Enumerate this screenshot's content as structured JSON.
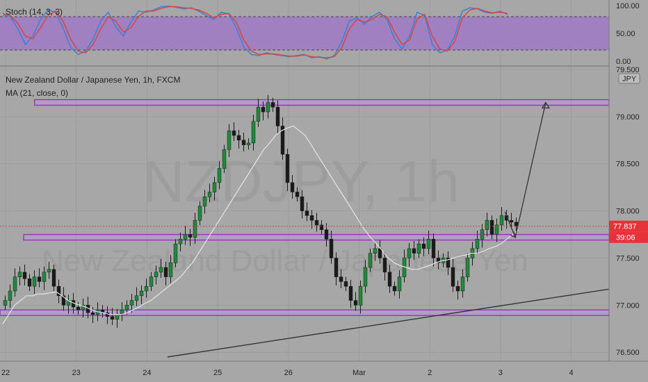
{
  "chart_data": [
    {
      "type": "line",
      "indicator": "Stoch (14, 3, 3)",
      "ylim": [
        0,
        100
      ],
      "yticks": [
        "100.00",
        "50.00",
        "0.00"
      ],
      "band": [
        20,
        80
      ],
      "series": [
        {
          "color": "#3a7fd8",
          "values": [
            86,
            80,
            58,
            30,
            45,
            75,
            92,
            88,
            60,
            25,
            12,
            18,
            40,
            72,
            88,
            62,
            45,
            70,
            90,
            88,
            92,
            98,
            99,
            97,
            94,
            96,
            90,
            82,
            75,
            88,
            85,
            60,
            25,
            12,
            10,
            15,
            12,
            10,
            8,
            10,
            12,
            6,
            8,
            4,
            10,
            35,
            72,
            78,
            66,
            80,
            88,
            75,
            40,
            22,
            45,
            88,
            82,
            30,
            15,
            20,
            45,
            90,
            96,
            94,
            88,
            86,
            90,
            84
          ]
        },
        {
          "color": "#d9463a",
          "values": [
            83,
            82,
            68,
            45,
            40,
            60,
            82,
            90,
            72,
            40,
            18,
            15,
            30,
            58,
            80,
            72,
            52,
            60,
            80,
            90,
            90,
            95,
            98,
            98,
            96,
            95,
            92,
            86,
            78,
            84,
            86,
            70,
            38,
            18,
            12,
            13,
            13,
            11,
            9,
            9,
            11,
            8,
            7,
            6,
            8,
            24,
            58,
            75,
            70,
            75,
            84,
            80,
            52,
            30,
            38,
            76,
            84,
            45,
            22,
            18,
            35,
            78,
            92,
            95,
            90,
            87,
            88,
            86
          ]
        }
      ]
    },
    {
      "type": "candlestick",
      "title": "New Zealand Dollar / Japanese Yen, 1h, FXCM",
      "indicator": "MA (21, close, 0)",
      "watermark_symbol": "NZDJPY, 1h",
      "watermark_name": "New Zealand Dollar / Japanese Yen",
      "currency": "JPY",
      "last_price": "77.837",
      "countdown": "39:06",
      "xlabels": [
        "22",
        "23",
        "24",
        "25",
        "26",
        "Mar",
        "2",
        "3",
        "4"
      ],
      "ylim": [
        76.45,
        79.5
      ],
      "yticks": [
        "79.500",
        "79.000",
        "78.500",
        "78.000",
        "77.500",
        "77.000",
        "76.500"
      ],
      "close": [
        77.05,
        77.15,
        77.3,
        77.35,
        77.28,
        77.2,
        77.3,
        77.25,
        77.35,
        77.38,
        77.2,
        77.1,
        77.0,
        77.05,
        76.98,
        76.95,
        77.0,
        76.92,
        76.9,
        76.95,
        76.92,
        76.88,
        76.85,
        76.9,
        76.95,
        77.0,
        77.05,
        77.1,
        77.15,
        77.2,
        77.3,
        77.35,
        77.4,
        77.3,
        77.45,
        77.65,
        77.7,
        77.75,
        77.72,
        77.9,
        78.05,
        78.15,
        78.2,
        78.3,
        78.45,
        78.65,
        78.85,
        78.8,
        78.75,
        78.7,
        78.72,
        78.95,
        79.1,
        79.05,
        79.15,
        79.1,
        78.9,
        78.6,
        78.3,
        78.2,
        78.15,
        78.0,
        77.95,
        77.9,
        77.85,
        77.8,
        77.7,
        77.5,
        77.3,
        77.25,
        77.2,
        77.05,
        77.0,
        77.2,
        77.4,
        77.55,
        77.6,
        77.5,
        77.35,
        77.2,
        77.15,
        77.3,
        77.5,
        77.6,
        77.55,
        77.65,
        77.6,
        77.7,
        77.5,
        77.45,
        77.5,
        77.4,
        77.2,
        77.15,
        77.3,
        77.5,
        77.6,
        77.7,
        77.8,
        77.9,
        77.75,
        77.85,
        77.95,
        77.9,
        77.88,
        77.84
      ],
      "ma_color": "#e6e6e6",
      "ma": [
        76.8,
        76.9,
        77.0,
        77.05,
        77.1,
        77.1,
        77.12,
        77.12,
        77.13,
        77.14,
        77.1,
        77.05,
        77.02,
        77.0,
        76.98,
        76.95,
        76.93,
        76.92,
        76.9,
        76.9,
        76.9,
        76.92,
        76.95,
        76.98,
        77.02,
        77.05,
        77.1,
        77.15,
        77.2,
        77.25,
        77.3,
        77.38,
        77.45,
        77.55,
        77.65,
        77.75,
        77.85,
        77.95,
        78.05,
        78.15,
        78.25,
        78.35,
        78.45,
        78.55,
        78.65,
        78.72,
        78.8,
        78.85,
        78.88,
        78.9,
        78.85,
        78.8,
        78.7,
        78.6,
        78.5,
        78.4,
        78.3,
        78.2,
        78.1,
        78.0,
        77.9,
        77.8,
        77.72,
        77.65,
        77.58,
        77.5,
        77.45,
        77.42,
        77.4,
        77.38,
        77.38,
        77.4,
        77.42,
        77.45,
        77.47,
        77.48,
        77.5,
        77.52,
        77.53,
        77.55,
        77.55,
        77.57,
        77.6,
        77.62,
        77.65,
        77.7,
        77.75,
        77.8
      ],
      "levels": [
        {
          "price": 79.15,
          "x_start_frac": 0.0567
        },
        {
          "price": 77.72,
          "x_start_frac": 0.0388
        },
        {
          "price": 76.92,
          "x_start_frac": 0.0
        }
      ],
      "trendline": {
        "from": {
          "x_frac": 0.275,
          "price": 76.45
        },
        "to": {
          "x_frac": 1.0,
          "price": 77.17
        }
      },
      "projection": [
        {
          "x_frac": 0.829,
          "price": 77.99
        },
        {
          "x_frac": 0.846,
          "price": 77.72
        },
        {
          "x_frac": 0.896,
          "price": 79.15
        }
      ],
      "colors": {
        "up": "#1f8a3a",
        "down": "#1a1a1a",
        "level": "#9a2fc8",
        "badge_price": "#e8323a",
        "badge_timer": "#e8323a"
      }
    }
  ]
}
